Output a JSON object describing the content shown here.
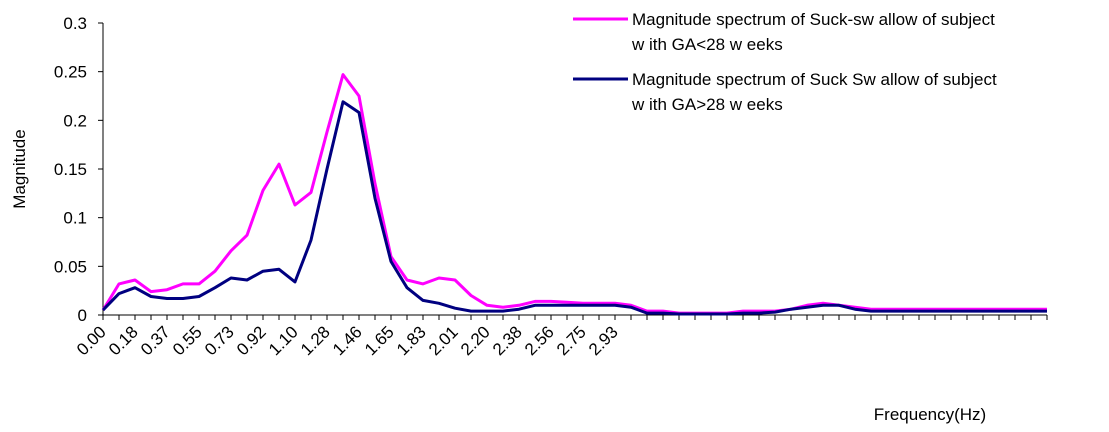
{
  "chart_data": {
    "type": "line",
    "title": "",
    "xlabel": "Frequency(Hz)",
    "ylabel": "Magnitude",
    "ylim": [
      0,
      0.3
    ],
    "yticks": [
      "0",
      "0.05",
      "0.1",
      "0.15",
      "0.2",
      "0.25",
      "0.3"
    ],
    "xtick_labels": [
      "0.00",
      "0.18",
      "0.37",
      "0.55",
      "0.73",
      "0.92",
      "1.10",
      "1.28",
      "1.46",
      "1.65",
      "1.83",
      "2.01",
      "2.20",
      "2.38",
      "2.56",
      "2.75",
      "2.93"
    ],
    "x": [
      0.0,
      0.09,
      0.18,
      0.28,
      0.37,
      0.46,
      0.55,
      0.64,
      0.73,
      0.83,
      0.92,
      1.01,
      1.1,
      1.19,
      1.28,
      1.38,
      1.47,
      1.56,
      1.65,
      1.74,
      1.83,
      1.93,
      2.02,
      2.11,
      2.2,
      2.29,
      2.39,
      2.48,
      2.57,
      2.66,
      2.75,
      2.84,
      2.94,
      3.03,
      3.12,
      3.21,
      3.3,
      3.39,
      3.49,
      3.58,
      3.67,
      3.76,
      3.85,
      3.95,
      4.04,
      4.13,
      4.22,
      4.31,
      4.4,
      4.5,
      4.59,
      4.68,
      4.77,
      4.86,
      4.96,
      5.05,
      5.14,
      5.23,
      5.32,
      5.41
    ],
    "grid": false,
    "legend": "top-right",
    "series": [
      {
        "name": "Magnitude spectrum of Suck-sw allow of subject w ith GA<28 w eeks",
        "color": "#ff00ff",
        "values": [
          0.005,
          0.032,
          0.036,
          0.024,
          0.026,
          0.032,
          0.032,
          0.045,
          0.066,
          0.082,
          0.128,
          0.155,
          0.113,
          0.126,
          0.188,
          0.247,
          0.225,
          0.135,
          0.06,
          0.036,
          0.032,
          0.038,
          0.036,
          0.02,
          0.01,
          0.008,
          0.01,
          0.014,
          0.014,
          0.013,
          0.012,
          0.012,
          0.012,
          0.01,
          0.004,
          0.004,
          0.002,
          0.002,
          0.002,
          0.002,
          0.004,
          0.004,
          0.004,
          0.006,
          0.01,
          0.012,
          0.01,
          0.008,
          0.006,
          0.006,
          0.006,
          0.006,
          0.006,
          0.006,
          0.006,
          0.006,
          0.006,
          0.006,
          0.006,
          0.006
        ]
      },
      {
        "name": "Magnitude spectrum of Suck Sw allow of subject w ith GA>28 w eeks",
        "color": "#000080",
        "values": [
          0.005,
          0.022,
          0.028,
          0.019,
          0.017,
          0.017,
          0.019,
          0.028,
          0.038,
          0.036,
          0.045,
          0.047,
          0.034,
          0.077,
          0.15,
          0.219,
          0.208,
          0.12,
          0.055,
          0.028,
          0.015,
          0.012,
          0.007,
          0.004,
          0.004,
          0.004,
          0.006,
          0.01,
          0.01,
          0.01,
          0.01,
          0.01,
          0.01,
          0.008,
          0.002,
          0.002,
          0.001,
          0.001,
          0.001,
          0.001,
          0.002,
          0.002,
          0.003,
          0.006,
          0.008,
          0.01,
          0.01,
          0.006,
          0.004,
          0.004,
          0.004,
          0.004,
          0.004,
          0.004,
          0.004,
          0.004,
          0.004,
          0.004,
          0.004,
          0.004
        ]
      }
    ]
  }
}
